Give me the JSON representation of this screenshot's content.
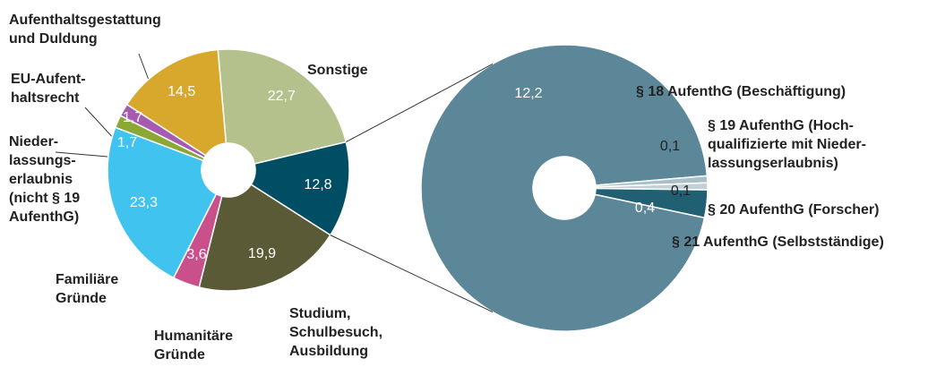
{
  "chart_data": [
    {
      "type": "donut",
      "categories": [
        "Sonstige",
        null,
        "Studium,\nSchulbesuch,\nAusbildung",
        "Humanitäre\nGründe",
        "Familiäre\nGründe",
        "Nieder-\nlassungs-\nerlaubnis\n(nicht § 19\nAufenthG)",
        "EU-Aufent-\nhaltsrecht",
        "Aufenthaltsgestattung\nund Duldung"
      ],
      "values": [
        22.7,
        12.8,
        19.9,
        3.6,
        23.3,
        1.7,
        1.7,
        14.5
      ],
      "value_labels": [
        "22,7",
        "12,8",
        "19,9",
        "3,6",
        "23,3",
        "1,7",
        "1,7",
        "14,5"
      ],
      "colors": [
        "#b5c18d",
        "#004e63",
        "#5b5a36",
        "#c9508b",
        "#40c4ef",
        "#8ba734",
        "#a65bb0",
        "#d8a82c"
      ]
    },
    {
      "type": "donut",
      "categories": [
        "§ 18 AufenthG (Beschäftigung)",
        "§ 19 AufenthG (Hoch-\nqualifizierte mit Nieder-\nlassungserlaubnis)",
        "§ 20 AufenthG (Forscher)",
        "§ 21 AufenthG (Selbstständige)"
      ],
      "values": [
        12.2,
        0.1,
        0.1,
        0.4
      ],
      "value_labels": [
        "12,2",
        "0,1",
        "0,1",
        "0,4"
      ],
      "colors": [
        "#5c8798",
        "#a9bfca",
        "#c3d0d7",
        "#215f73"
      ]
    }
  ]
}
